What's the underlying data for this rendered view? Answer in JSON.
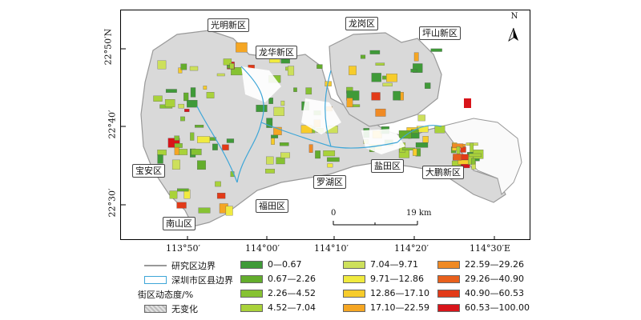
{
  "map": {
    "lat_ticks": [
      "22°50′N",
      "22°40′",
      "22°30′"
    ],
    "lon_ticks": [
      "113°50′",
      "114°00′",
      "114°10′",
      "114°20′",
      "114°30′E"
    ],
    "north_label": "N",
    "scale": {
      "zero": "0",
      "max": "19 km"
    },
    "districts": [
      {
        "key": "guangming",
        "label": "光明新区"
      },
      {
        "key": "longgang",
        "label": "龙岗区"
      },
      {
        "key": "pingshan",
        "label": "坪山新区"
      },
      {
        "key": "longhua",
        "label": "龙华新区"
      },
      {
        "key": "baoan",
        "label": "宝安区"
      },
      {
        "key": "luohu",
        "label": "罗湖区"
      },
      {
        "key": "yantian",
        "label": "盐田区"
      },
      {
        "key": "dapeng",
        "label": "大鹏新区"
      },
      {
        "key": "futian",
        "label": "福田区"
      },
      {
        "key": "nanshan",
        "label": "南山区"
      }
    ]
  },
  "legend": {
    "study_boundary": "研究区边界",
    "county_boundary": "深圳市区县边界",
    "dynamic_title": "街区动态度/%",
    "no_change": "无变化",
    "study_boundary_color": "#999999",
    "county_boundary_color": "#3ea6d8",
    "classes": [
      {
        "label": "0—0.67",
        "color": "#3f9a38"
      },
      {
        "label": "0.67—2.26",
        "color": "#63ad2c"
      },
      {
        "label": "2.26—4.52",
        "color": "#86c232"
      },
      {
        "label": "4.52—7.04",
        "color": "#a9d23a"
      },
      {
        "label": "7.04—9.71",
        "color": "#cde05b"
      },
      {
        "label": "9.71—12.86",
        "color": "#f0ea3f"
      },
      {
        "label": "12.86—17.10",
        "color": "#f7cc2b"
      },
      {
        "label": "17.10—22.59",
        "color": "#f5a623"
      },
      {
        "label": "22.59—29.26",
        "color": "#f08a24"
      },
      {
        "label": "29.26—40.90",
        "color": "#e8601c"
      },
      {
        "label": "40.90—60.53",
        "color": "#e23a18"
      },
      {
        "label": "60.53—100.00",
        "color": "#d8141a"
      }
    ]
  }
}
